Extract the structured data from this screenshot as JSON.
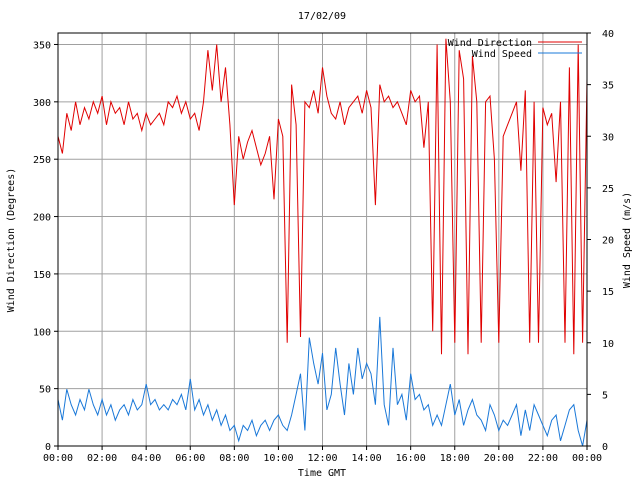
{
  "chart_data": {
    "type": "line",
    "title": "17/02/09",
    "xlabel": "Time GMT",
    "ylabel_left": "Wind Direction (Degrees)",
    "ylabel_right": "Wind Speed (m/s)",
    "x_ticks": [
      "00:00",
      "02:00",
      "04:00",
      "06:00",
      "08:00",
      "10:00",
      "12:00",
      "14:00",
      "16:00",
      "18:00",
      "20:00",
      "22:00",
      "00:00"
    ],
    "xlim": [
      0,
      24
    ],
    "ylim_left": [
      0,
      360
    ],
    "ylim_right": [
      0,
      40
    ],
    "y_ticks_left": [
      "0",
      "50",
      "100",
      "150",
      "200",
      "250",
      "300",
      "350"
    ],
    "y_ticks_right": [
      "0",
      "5",
      "10",
      "15",
      "20",
      "25",
      "30",
      "35",
      "40"
    ],
    "grid": true,
    "legend_position": "top-right",
    "series": [
      {
        "name": "Wind Direction",
        "axis": "left",
        "color": "#e00000",
        "x": [
          0.0,
          0.2,
          0.4,
          0.6,
          0.8,
          1.0,
          1.2,
          1.4,
          1.6,
          1.8,
          2.0,
          2.2,
          2.4,
          2.6,
          2.8,
          3.0,
          3.2,
          3.4,
          3.6,
          3.8,
          4.0,
          4.2,
          4.4,
          4.6,
          4.8,
          5.0,
          5.2,
          5.4,
          5.6,
          5.8,
          6.0,
          6.2,
          6.4,
          6.6,
          6.8,
          7.0,
          7.2,
          7.4,
          7.6,
          7.8,
          8.0,
          8.2,
          8.4,
          8.6,
          8.8,
          9.0,
          9.2,
          9.4,
          9.6,
          9.8,
          10.0,
          10.2,
          10.4,
          10.6,
          10.8,
          11.0,
          11.2,
          11.4,
          11.6,
          11.8,
          12.0,
          12.2,
          12.4,
          12.6,
          12.8,
          13.0,
          13.2,
          13.4,
          13.6,
          13.8,
          14.0,
          14.2,
          14.4,
          14.6,
          14.8,
          15.0,
          15.2,
          15.4,
          15.6,
          15.8,
          16.0,
          16.2,
          16.4,
          16.6,
          16.8,
          17.0,
          17.2,
          17.4,
          17.6,
          17.8,
          18.0,
          18.2,
          18.4,
          18.6,
          18.8,
          19.0,
          19.2,
          19.4,
          19.6,
          19.8,
          20.0,
          20.2,
          20.4,
          20.6,
          20.8,
          21.0,
          21.2,
          21.4,
          21.6,
          21.8,
          22.0,
          22.2,
          22.4,
          22.6,
          22.8,
          23.0,
          23.2,
          23.4,
          23.6,
          23.8,
          24.0
        ],
        "values": [
          270,
          255,
          290,
          275,
          300,
          280,
          295,
          285,
          300,
          290,
          305,
          280,
          300,
          290,
          295,
          280,
          300,
          285,
          290,
          275,
          290,
          280,
          285,
          290,
          280,
          300,
          295,
          305,
          290,
          300,
          285,
          290,
          275,
          300,
          345,
          310,
          350,
          300,
          330,
          280,
          210,
          270,
          250,
          265,
          275,
          260,
          245,
          255,
          270,
          215,
          285,
          270,
          90,
          315,
          280,
          95,
          300,
          295,
          310,
          290,
          330,
          305,
          290,
          285,
          300,
          280,
          295,
          300,
          305,
          290,
          310,
          295,
          210,
          315,
          300,
          305,
          295,
          300,
          290,
          280,
          310,
          300,
          305,
          260,
          300,
          100,
          350,
          80,
          355,
          300,
          90,
          345,
          320,
          80,
          340,
          300,
          90,
          300,
          305,
          250,
          90,
          270,
          280,
          290,
          300,
          240,
          310,
          90,
          300,
          90,
          295,
          280,
          290,
          230,
          300,
          90,
          330,
          80,
          350,
          90,
          320
        ]
      },
      {
        "name": "Wind Speed",
        "axis": "right",
        "color": "#1a78d8",
        "x": [
          0.0,
          0.2,
          0.4,
          0.6,
          0.8,
          1.0,
          1.2,
          1.4,
          1.6,
          1.8,
          2.0,
          2.2,
          2.4,
          2.6,
          2.8,
          3.0,
          3.2,
          3.4,
          3.6,
          3.8,
          4.0,
          4.2,
          4.4,
          4.6,
          4.8,
          5.0,
          5.2,
          5.4,
          5.6,
          5.8,
          6.0,
          6.2,
          6.4,
          6.6,
          6.8,
          7.0,
          7.2,
          7.4,
          7.6,
          7.8,
          8.0,
          8.2,
          8.4,
          8.6,
          8.8,
          9.0,
          9.2,
          9.4,
          9.6,
          9.8,
          10.0,
          10.2,
          10.4,
          10.6,
          10.8,
          11.0,
          11.2,
          11.4,
          11.6,
          11.8,
          12.0,
          12.2,
          12.4,
          12.6,
          12.8,
          13.0,
          13.2,
          13.4,
          13.6,
          13.8,
          14.0,
          14.2,
          14.4,
          14.6,
          14.8,
          15.0,
          15.2,
          15.4,
          15.6,
          15.8,
          16.0,
          16.2,
          16.4,
          16.6,
          16.8,
          17.0,
          17.2,
          17.4,
          17.6,
          17.8,
          18.0,
          18.2,
          18.4,
          18.6,
          18.8,
          19.0,
          19.2,
          19.4,
          19.6,
          19.8,
          20.0,
          20.2,
          20.4,
          20.6,
          20.8,
          21.0,
          21.2,
          21.4,
          21.6,
          21.8,
          22.0,
          22.2,
          22.4,
          22.6,
          22.8,
          23.0,
          23.2,
          23.4,
          23.6,
          23.8,
          24.0
        ],
        "values": [
          4.5,
          2.5,
          5.5,
          4,
          3,
          4.5,
          3.5,
          5.5,
          4,
          3,
          4.5,
          3,
          4,
          2.5,
          3.5,
          4,
          3,
          4.5,
          3.5,
          4,
          6,
          4,
          4.5,
          3.5,
          4,
          3.5,
          4.5,
          4,
          5,
          3.5,
          6.5,
          3.5,
          4.5,
          3,
          4,
          2.5,
          3.5,
          2,
          3,
          1.5,
          2,
          0.5,
          2,
          1.5,
          2.5,
          1,
          2,
          2.5,
          1.5,
          2.5,
          3,
          2,
          1.5,
          3,
          5,
          7,
          1.5,
          10.5,
          8,
          6,
          9,
          3.5,
          5,
          9.5,
          6,
          3,
          8,
          5,
          9.5,
          6.5,
          8,
          7,
          4,
          12.5,
          4,
          2,
          9.5,
          4,
          5,
          2.5,
          7,
          4.5,
          5,
          3.5,
          4,
          2,
          3,
          2,
          4,
          6,
          3,
          4.5,
          2,
          3.5,
          4.5,
          3,
          2.5,
          1.5,
          4,
          3,
          1.5,
          2.5,
          2,
          3,
          4,
          1,
          3.5,
          1.5,
          4,
          3,
          2,
          1,
          2.5,
          3,
          0.5,
          2,
          3.5,
          4,
          1.5,
          0,
          2.5
        ]
      }
    ]
  }
}
